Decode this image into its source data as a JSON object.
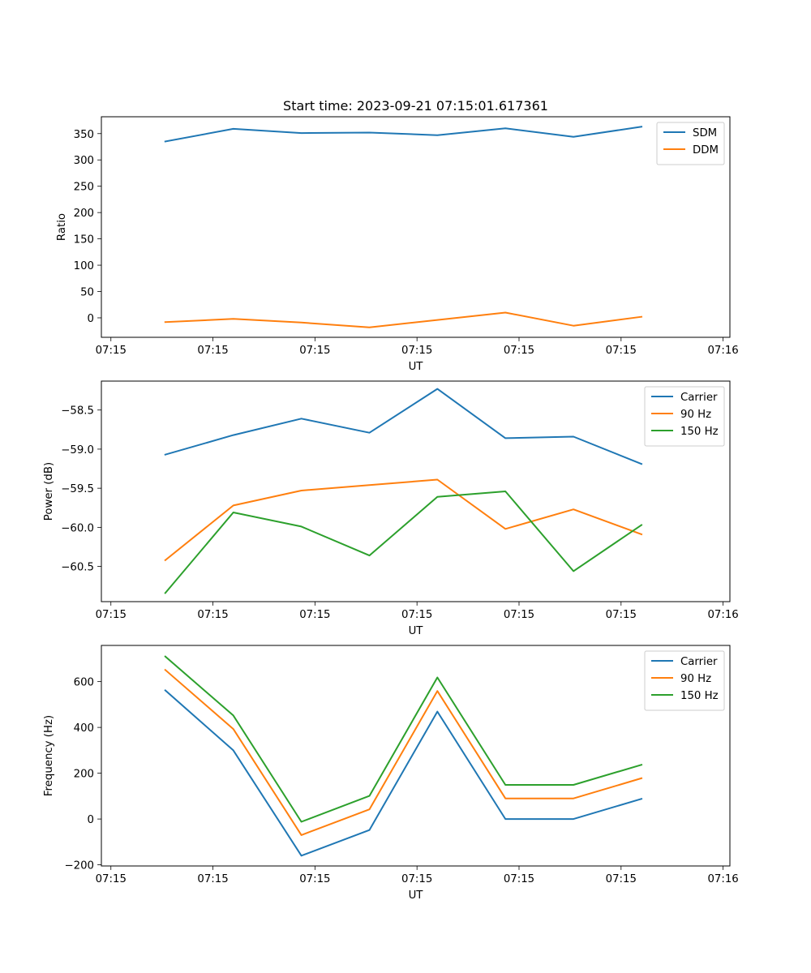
{
  "figure": {
    "title": "Start time: 2023-09-21 07:15:01.617361"
  },
  "chart_data": [
    {
      "type": "line",
      "title": "Start time: 2023-09-21 07:15:01.617361",
      "xlabel": "UT",
      "ylabel": "Ratio",
      "x": [
        1,
        2,
        3,
        4,
        5,
        6,
        7,
        8
      ],
      "xlim": [
        0.06,
        9.3
      ],
      "x_ticks": [
        0.2,
        1.7,
        3.2,
        4.7,
        6.2,
        7.7,
        9.2
      ],
      "x_tick_labels": [
        "07:15",
        "07:15",
        "07:15",
        "07:15",
        "07:15",
        "07:15",
        "07:16"
      ],
      "ylim": [
        -37,
        382
      ],
      "y_ticks": [
        0,
        50,
        100,
        150,
        200,
        250,
        300,
        350
      ],
      "y_tick_labels": [
        "0",
        "50",
        "100",
        "150",
        "200",
        "250",
        "300",
        "350"
      ],
      "legend_position": "top-right",
      "series": [
        {
          "name": "SDM",
          "color": "#1f77b4",
          "values": [
            335,
            359,
            351,
            352,
            347,
            360,
            344,
            363
          ]
        },
        {
          "name": "DDM",
          "color": "#ff7f0e",
          "values": [
            -8,
            -2,
            -9,
            -18,
            -4,
            10,
            -15,
            2
          ]
        }
      ]
    },
    {
      "type": "line",
      "title": "",
      "xlabel": "UT",
      "ylabel": "Power (dB)",
      "x": [
        1,
        2,
        3,
        4,
        5,
        6,
        7,
        8
      ],
      "xlim": [
        0.06,
        9.3
      ],
      "x_ticks": [
        0.2,
        1.7,
        3.2,
        4.7,
        6.2,
        7.7,
        9.2
      ],
      "x_tick_labels": [
        "07:15",
        "07:15",
        "07:15",
        "07:15",
        "07:15",
        "07:15",
        "07:16"
      ],
      "ylim": [
        -60.95,
        -58.13
      ],
      "y_ticks": [
        -60.5,
        -60.0,
        -59.5,
        -59.0,
        -58.5
      ],
      "y_tick_labels": [
        "−60.5",
        "−60.0",
        "−59.5",
        "−59.0",
        "−58.5"
      ],
      "legend_position": "top-right",
      "series": [
        {
          "name": "Carrier",
          "color": "#1f77b4",
          "values": [
            -59.07,
            -58.82,
            -58.61,
            -58.79,
            -58.23,
            -58.86,
            -58.84,
            -59.19
          ]
        },
        {
          "name": "90 Hz",
          "color": "#ff7f0e",
          "values": [
            -60.42,
            -59.72,
            -59.53,
            -59.46,
            -59.39,
            -60.02,
            -59.77,
            -60.09
          ]
        },
        {
          "name": "150 Hz",
          "color": "#2ca02c",
          "values": [
            -60.84,
            -59.81,
            -59.99,
            -60.36,
            -59.61,
            -59.54,
            -60.56,
            -59.97
          ]
        }
      ]
    },
    {
      "type": "line",
      "title": "",
      "xlabel": "UT",
      "ylabel": "Frequency (Hz)",
      "x": [
        1,
        2,
        3,
        4,
        5,
        6,
        7,
        8
      ],
      "xlim": [
        0.06,
        9.3
      ],
      "x_ticks": [
        0.2,
        1.7,
        3.2,
        4.7,
        6.2,
        7.7,
        9.2
      ],
      "x_tick_labels": [
        "07:15",
        "07:15",
        "07:15",
        "07:15",
        "07:15",
        "07:15",
        "07:16"
      ],
      "ylim": [
        -205,
        758
      ],
      "y_ticks": [
        -200,
        0,
        200,
        400,
        600
      ],
      "y_tick_labels": [
        "−200",
        "0",
        "200",
        "400",
        "600"
      ],
      "legend_position": "top-right",
      "series": [
        {
          "name": "Carrier",
          "color": "#1f77b4",
          "values": [
            562,
            300,
            -160,
            -48,
            469,
            0,
            0,
            88
          ]
        },
        {
          "name": "90 Hz",
          "color": "#ff7f0e",
          "values": [
            651,
            393,
            -70,
            42,
            559,
            90,
            90,
            178
          ]
        },
        {
          "name": "150 Hz",
          "color": "#2ca02c",
          "values": [
            710,
            452,
            -12,
            101,
            618,
            149,
            149,
            237
          ]
        }
      ]
    }
  ]
}
